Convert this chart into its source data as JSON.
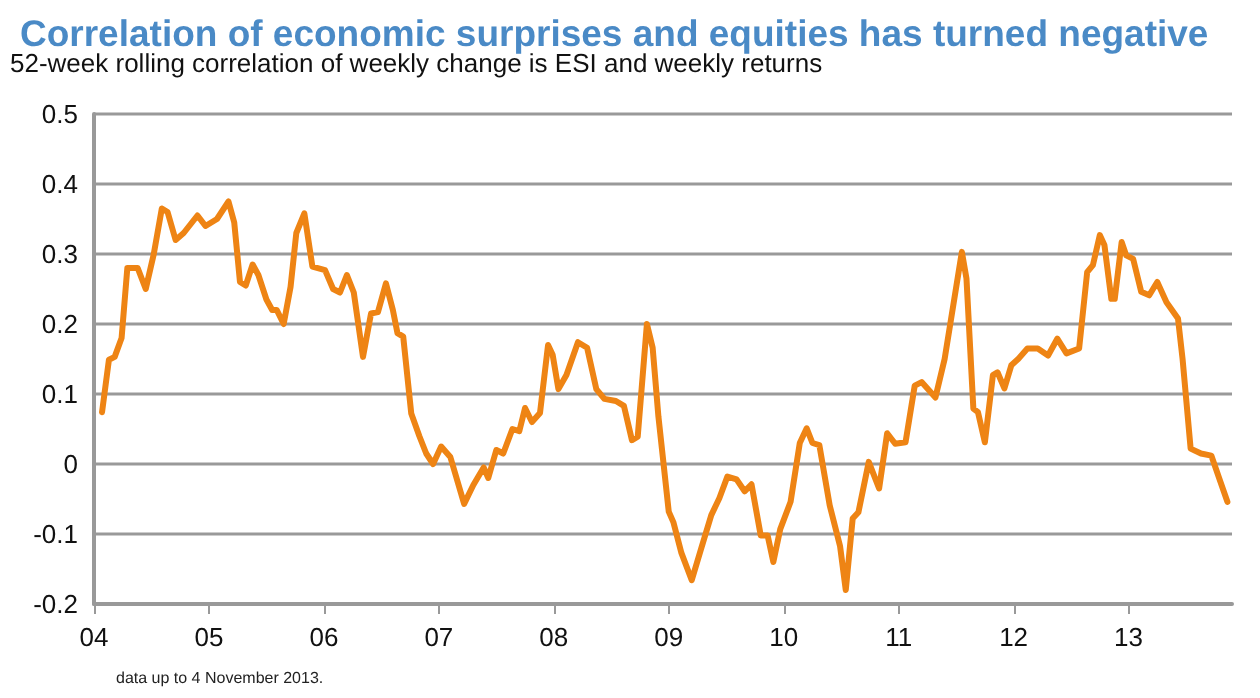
{
  "chart_data": {
    "type": "line",
    "title": "Correlation of economic surprises and equities has turned negative",
    "subtitle": "52-week rolling correlation of weekly change is ESI and weekly returns",
    "annotations": [
      "data up to 4 November 2013."
    ],
    "x": [
      2004.07,
      2004.13,
      2004.18,
      2004.24,
      2004.29,
      2004.38,
      2004.45,
      2004.52,
      2004.59,
      2004.64,
      2004.71,
      2004.78,
      2004.9,
      2004.97,
      2005.07,
      2005.17,
      2005.22,
      2005.27,
      2005.32,
      2005.38,
      2005.43,
      2005.5,
      2005.55,
      2005.59,
      2005.65,
      2005.71,
      2005.76,
      2005.83,
      2005.9,
      2006.01,
      2006.08,
      2006.14,
      2006.2,
      2006.26,
      2006.34,
      2006.41,
      2006.47,
      2006.54,
      2006.6,
      2006.64,
      2006.69,
      2006.76,
      2006.83,
      2006.89,
      2006.95,
      2007.02,
      2007.1,
      2007.22,
      2007.3,
      2007.39,
      2007.43,
      2007.5,
      2007.56,
      2007.64,
      2007.7,
      2007.75,
      2007.81,
      2007.88,
      2007.95,
      2007.99,
      2008.04,
      2008.11,
      2008.21,
      2008.29,
      2008.37,
      2008.44,
      2008.54,
      2008.61,
      2008.68,
      2008.73,
      2008.81,
      2008.86,
      2008.91,
      2009.0,
      2009.04,
      2009.11,
      2009.2,
      2009.28,
      2009.37,
      2009.44,
      2009.51,
      2009.59,
      2009.66,
      2009.72,
      2009.8,
      2009.86,
      2009.91,
      2009.97,
      2010.06,
      2010.14,
      2010.2,
      2010.25,
      2010.31,
      2010.4,
      2010.49,
      2010.54,
      2010.6,
      2010.65,
      2010.74,
      2010.83,
      2010.9,
      2010.97,
      2011.06,
      2011.14,
      2011.2,
      2011.32,
      2011.4,
      2011.55,
      2011.59,
      2011.65,
      2011.69,
      2011.75,
      2011.82,
      2011.86,
      2011.92,
      2011.98,
      2012.04,
      2012.12,
      2012.21,
      2012.3,
      2012.38,
      2012.46,
      2012.57,
      2012.64,
      2012.69,
      2012.75,
      2012.79,
      2012.85,
      2012.88,
      2012.94,
      2012.98,
      2013.04,
      2013.11,
      2013.18,
      2013.25,
      2013.33,
      2013.43,
      2013.47,
      2013.54,
      2013.63,
      2013.72,
      2013.79,
      2013.86
    ],
    "series": [
      {
        "color": "#ee8414",
        "values": [
          0.074,
          0.149,
          0.153,
          0.18,
          0.28,
          0.28,
          0.25,
          0.3,
          0.365,
          0.36,
          0.32,
          0.33,
          0.355,
          0.34,
          0.35,
          0.375,
          0.345,
          0.26,
          0.255,
          0.285,
          0.27,
          0.235,
          0.22,
          0.22,
          0.2,
          0.253,
          0.33,
          0.358,
          0.282,
          0.277,
          0.25,
          0.245,
          0.27,
          0.245,
          0.153,
          0.215,
          0.217,
          0.258,
          0.22,
          0.187,
          0.182,
          0.072,
          0.04,
          0.015,
          0.0,
          0.025,
          0.01,
          -0.057,
          -0.03,
          -0.005,
          -0.02,
          0.02,
          0.015,
          0.05,
          0.047,
          0.08,
          0.06,
          0.073,
          0.17,
          0.156,
          0.107,
          0.127,
          0.174,
          0.166,
          0.107,
          0.093,
          0.09,
          0.083,
          0.034,
          0.039,
          0.2,
          0.166,
          0.068,
          -0.068,
          -0.083,
          -0.127,
          -0.166,
          -0.122,
          -0.073,
          -0.049,
          -0.018,
          -0.022,
          -0.039,
          -0.029,
          -0.102,
          -0.102,
          -0.14,
          -0.093,
          -0.054,
          0.03,
          0.051,
          0.03,
          0.027,
          -0.059,
          -0.117,
          -0.18,
          -0.078,
          -0.069,
          0.003,
          -0.035,
          0.044,
          0.029,
          0.031,
          0.112,
          0.117,
          0.095,
          0.15,
          0.303,
          0.265,
          0.079,
          0.074,
          0.031,
          0.127,
          0.131,
          0.108,
          0.141,
          0.15,
          0.165,
          0.165,
          0.155,
          0.179,
          0.158,
          0.165,
          0.274,
          0.284,
          0.327,
          0.313,
          0.236,
          0.236,
          0.317,
          0.298,
          0.293,
          0.246,
          0.241,
          0.26,
          0.231,
          0.208,
          0.15,
          0.022,
          0.015,
          0.012,
          -0.021,
          -0.054
        ]
      }
    ],
    "xlim": [
      2004,
      2013.9
    ],
    "xticks": [
      {
        "value": 2004,
        "label": "04"
      },
      {
        "value": 2005,
        "label": "05"
      },
      {
        "value": 2006,
        "label": "06"
      },
      {
        "value": 2007,
        "label": "07"
      },
      {
        "value": 2008,
        "label": "08"
      },
      {
        "value": 2009,
        "label": "09"
      },
      {
        "value": 2010,
        "label": "10"
      },
      {
        "value": 2011,
        "label": "11"
      },
      {
        "value": 2012,
        "label": "12"
      },
      {
        "value": 2013,
        "label": "13"
      }
    ],
    "ylim": [
      -0.2,
      0.5
    ],
    "yticks": [
      -0.2,
      -0.1,
      0,
      0.1,
      0.2,
      0.3,
      0.4,
      0.5
    ],
    "grid": "y",
    "marker": "none",
    "line_style": "solid"
  }
}
